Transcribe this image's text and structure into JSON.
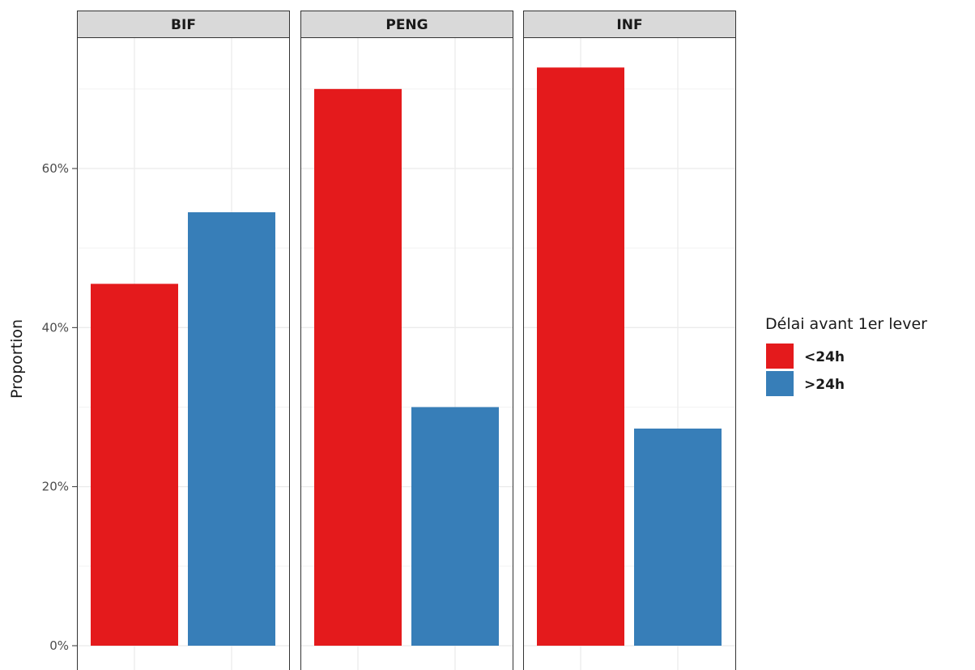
{
  "chart_data": {
    "type": "bar",
    "facets": [
      "BIF",
      "PENG",
      "INF"
    ],
    "categories": [
      "<24h",
      ">24h"
    ],
    "series": [
      {
        "facet": "BIF",
        "values": [
          45.5,
          54.5
        ]
      },
      {
        "facet": "PENG",
        "values": [
          70.0,
          30.0
        ]
      },
      {
        "facet": "INF",
        "values": [
          72.7,
          27.3
        ]
      }
    ],
    "colors": {
      "<24h": "#e41a1c",
      ">24h": "#377eb8"
    },
    "xlabel": "",
    "ylabel": "Proportion",
    "ylim": [
      0,
      75
    ],
    "y_ticks": [
      0,
      20,
      40,
      60
    ],
    "y_tick_labels": [
      "0%",
      "20%",
      "40%",
      "60%"
    ],
    "grid": true,
    "legend": {
      "title": "Délai avant 1er lever",
      "entries": [
        "<24h",
        ">24h"
      ],
      "placement": "right"
    }
  }
}
